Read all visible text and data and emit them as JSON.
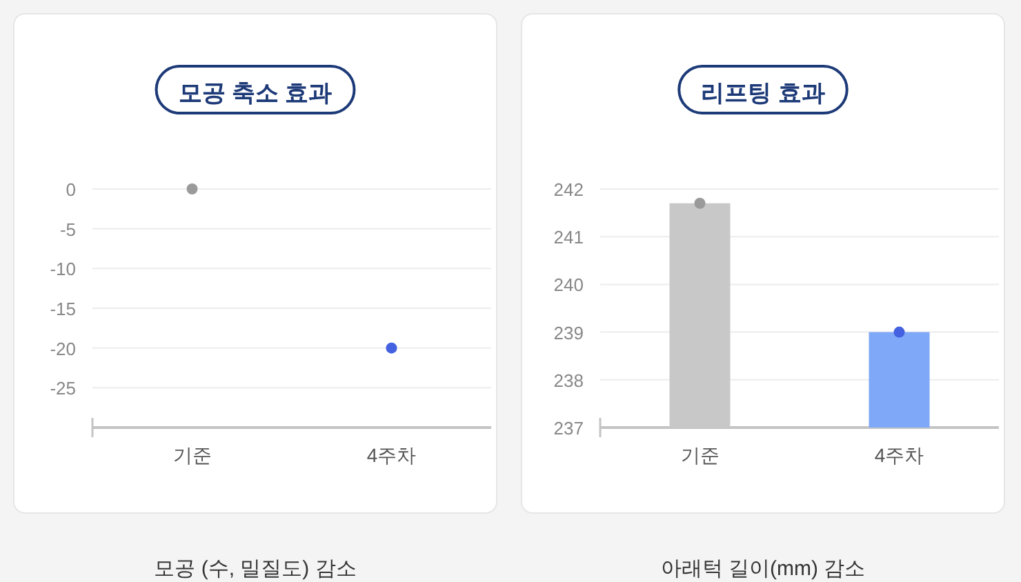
{
  "chart_data": [
    {
      "type": "scatter",
      "title": "모공 축소 효과",
      "categories": [
        "기준",
        "4주차"
      ],
      "series": [
        {
          "colors": [
            "#9a9a9a",
            "#4361e0"
          ],
          "values": [
            0,
            -20
          ]
        }
      ],
      "ylim": [
        -30,
        0
      ],
      "yticks": [
        0,
        -5,
        -10,
        -15,
        -20,
        -25
      ],
      "grid": "y",
      "annotations": [
        "모공 (수, 밀질도) 감소"
      ]
    },
    {
      "type": "bar",
      "title": "리프팅 효과",
      "categories": [
        "기준",
        "4주차"
      ],
      "series": [
        {
          "colors": [
            "#c8c8c8",
            "#7fa8f8"
          ],
          "values": [
            241.7,
            239
          ]
        },
        {
          "type": "scatter",
          "x": [
            "기준",
            "4주차"
          ],
          "colors": [
            "#9a9a9a",
            "#4361e0"
          ],
          "values": [
            241.7,
            239
          ]
        }
      ],
      "ylim": [
        237,
        242
      ],
      "yticks": [
        237,
        238,
        239,
        240,
        241,
        242
      ],
      "grid": "y",
      "annotations": [
        "아래턱 길이(mm) 감소"
      ]
    }
  ]
}
